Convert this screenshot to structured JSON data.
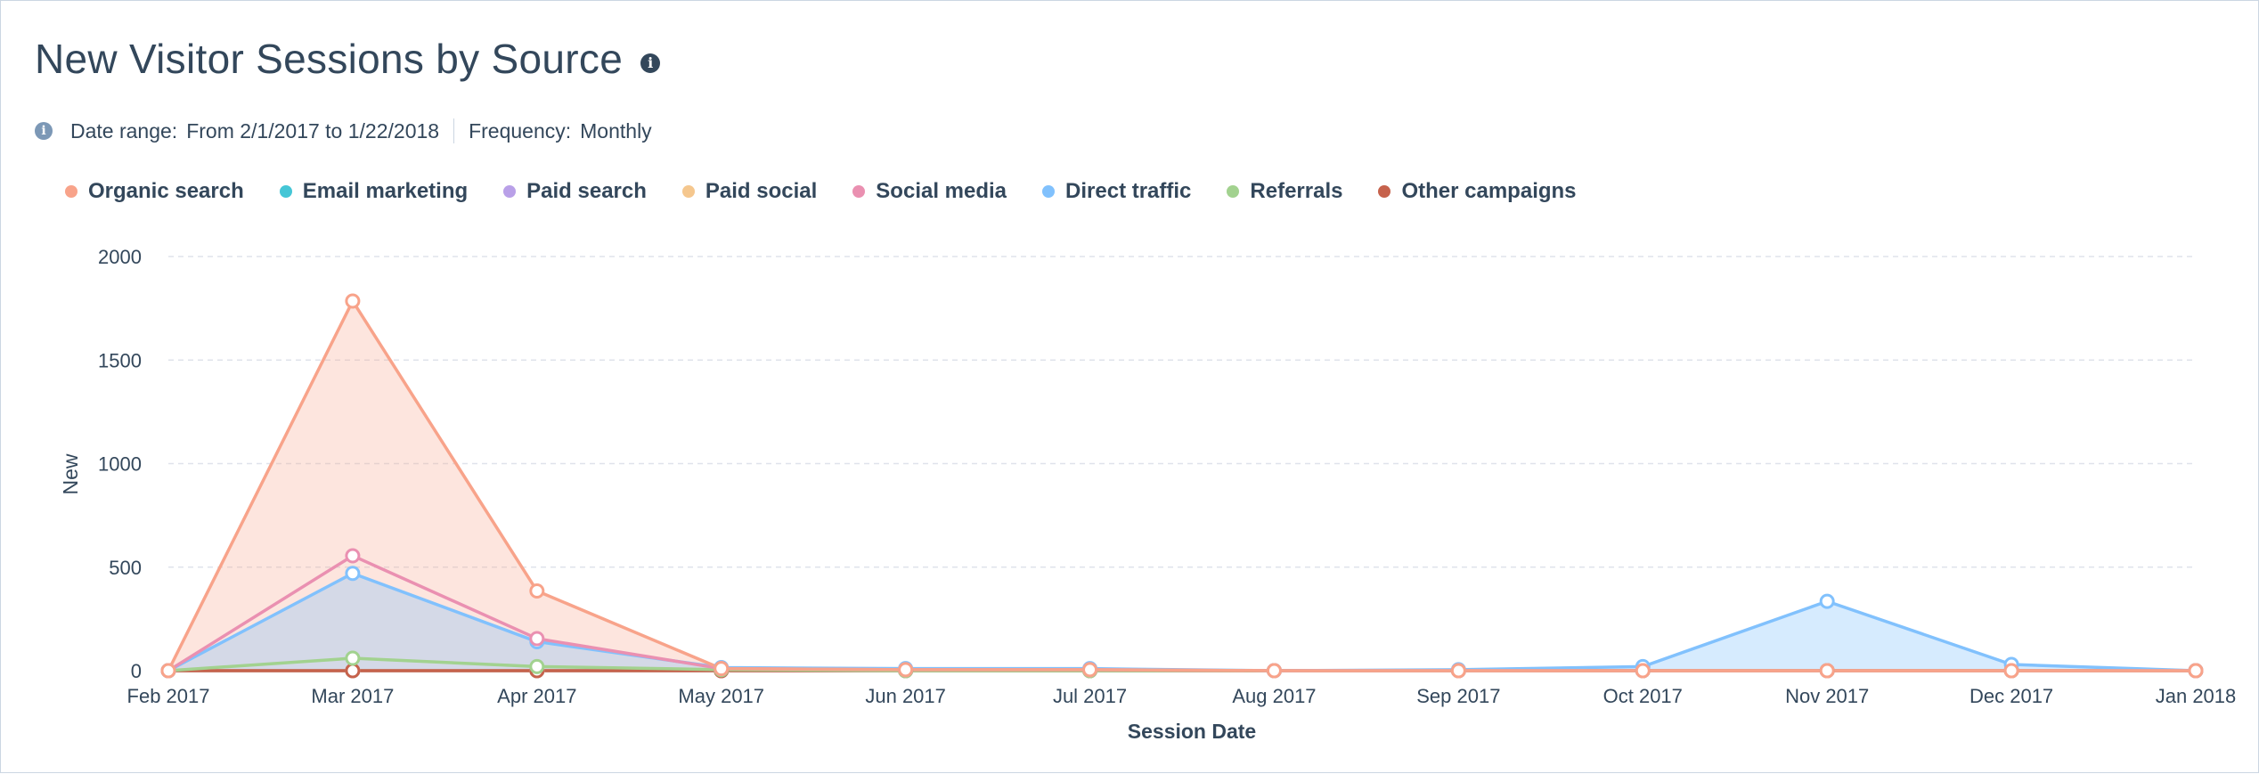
{
  "header": {
    "title": "New Visitor Sessions by Source",
    "info_icon": "info-icon"
  },
  "meta": {
    "date_range_label": "Date range:",
    "date_range_value": "From 2/1/2017 to 1/22/2018",
    "frequency_label": "Frequency:",
    "frequency_value": "Monthly"
  },
  "colors": {
    "organic": "#f8a38a",
    "email": "#45c6d6",
    "paid_search": "#b9a0e8",
    "paid_social": "#f5c78e",
    "social": "#ea90b1",
    "direct": "#81c1fd",
    "referrals": "#a2d28f",
    "other": "#c6624c"
  },
  "chart_data": {
    "type": "area",
    "title": "New Visitor Sessions by Source",
    "xlabel": "Session Date",
    "ylabel": "New",
    "ylim": [
      0,
      2000
    ],
    "yticks": [
      0,
      500,
      1000,
      1500,
      2000
    ],
    "grid": true,
    "legend_position": "top-left",
    "categories": [
      "Feb 2017",
      "Mar 2017",
      "Apr 2017",
      "May 2017",
      "Jun 2017",
      "Jul 2017",
      "Aug 2017",
      "Sep 2017",
      "Oct 2017",
      "Nov 2017",
      "Dec 2017",
      "Jan 2018"
    ],
    "series": [
      {
        "name": "Organic search",
        "color": "#f8a38a",
        "values": [
          0,
          1785,
          385,
          10,
          5,
          5,
          0,
          0,
          0,
          0,
          0,
          0
        ]
      },
      {
        "name": "Email marketing",
        "color": "#45c6d6",
        "values": [
          0,
          0,
          0,
          0,
          0,
          0,
          0,
          0,
          0,
          0,
          0,
          0
        ]
      },
      {
        "name": "Paid search",
        "color": "#b9a0e8",
        "values": [
          0,
          0,
          0,
          0,
          0,
          0,
          0,
          0,
          0,
          0,
          0,
          0
        ]
      },
      {
        "name": "Paid social",
        "color": "#f5c78e",
        "values": [
          0,
          0,
          0,
          0,
          0,
          0,
          0,
          0,
          0,
          0,
          0,
          0
        ]
      },
      {
        "name": "Social media",
        "color": "#ea90b1",
        "values": [
          0,
          555,
          155,
          10,
          5,
          5,
          0,
          0,
          0,
          0,
          0,
          0
        ]
      },
      {
        "name": "Direct traffic",
        "color": "#81c1fd",
        "values": [
          0,
          470,
          140,
          15,
          10,
          10,
          0,
          5,
          20,
          335,
          30,
          0
        ]
      },
      {
        "name": "Referrals",
        "color": "#a2d28f",
        "values": [
          0,
          60,
          20,
          5,
          0,
          0,
          0,
          0,
          0,
          0,
          0,
          0
        ]
      },
      {
        "name": "Other campaigns",
        "color": "#c6624c",
        "values": [
          0,
          0,
          0,
          0,
          0,
          0,
          0,
          0,
          0,
          0,
          0,
          0
        ]
      }
    ]
  }
}
